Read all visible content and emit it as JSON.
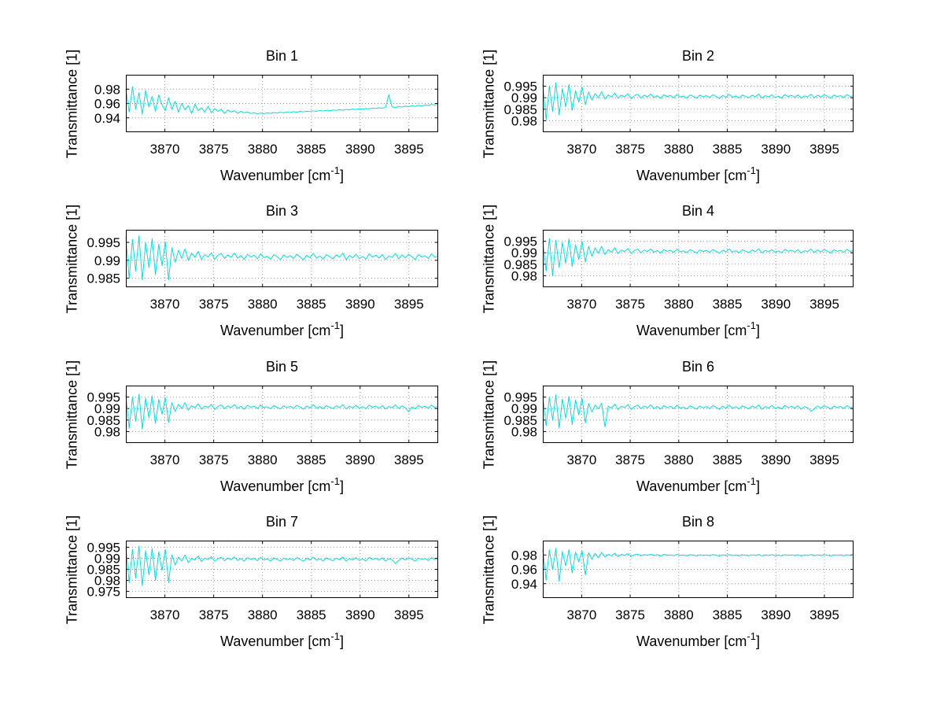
{
  "figure": {
    "background": "#ffffff"
  },
  "labels": {
    "ylabel": "Transmittance [1]",
    "xlabel_main": "Wavenumber [cm",
    "xlabel_sup": "-1",
    "xlabel_suffix": "]"
  },
  "chart_data": {
    "type": "line",
    "series_color": "#00E0E0",
    "grid": true,
    "x_lim": [
      3866,
      3898
    ],
    "x_ticks": [
      3870,
      3875,
      3880,
      3885,
      3890,
      3895
    ],
    "xlabel": "Wavenumber [cm-1]",
    "ylabel": "Transmittance [1]",
    "bins": [
      {
        "title": "Bin 1",
        "y_lim": [
          0.92,
          1.0
        ],
        "y_ticks": [
          0.94,
          0.96,
          0.98
        ],
        "y_tick_labels": [
          "0.94",
          "0.96",
          "0.98"
        ],
        "y": [
          0.98,
          0.948,
          0.983,
          0.952,
          0.975,
          0.945,
          0.978,
          0.955,
          0.97,
          0.949,
          0.972,
          0.958,
          0.95,
          0.968,
          0.952,
          0.963,
          0.948,
          0.96,
          0.951,
          0.957,
          0.946,
          0.959,
          0.95,
          0.954,
          0.948,
          0.956,
          0.947,
          0.953,
          0.949,
          0.952,
          0.946,
          0.951,
          0.948,
          0.95,
          0.9462,
          0.949,
          0.947,
          0.9482,
          0.946,
          0.9472,
          0.9455,
          0.9468,
          0.9458,
          0.947,
          0.9462,
          0.9474,
          0.9466,
          0.9478,
          0.947,
          0.9482,
          0.9474,
          0.9486,
          0.9478,
          0.949,
          0.9483,
          0.9494,
          0.9487,
          0.9498,
          0.9491,
          0.9502,
          0.9495,
          0.9506,
          0.95,
          0.951,
          0.9504,
          0.9514,
          0.9508,
          0.9518,
          0.9512,
          0.9522,
          0.9516,
          0.9526,
          0.9521,
          0.953,
          0.9526,
          0.9535,
          0.953,
          0.954,
          0.9535,
          0.9545,
          0.972,
          0.955,
          0.9545,
          0.9556,
          0.955,
          0.9562,
          0.9556,
          0.9568,
          0.956,
          0.9574,
          0.9566,
          0.958,
          0.9572,
          0.9586,
          0.9578,
          0.9592
        ]
      },
      {
        "title": "Bin 2",
        "y_lim": [
          0.975,
          1.0
        ],
        "y_ticks": [
          0.98,
          0.985,
          0.99,
          0.995
        ],
        "y_tick_labels": [
          "0.98",
          "0.985",
          "0.99",
          "0.995"
        ],
        "y": [
          0.996,
          0.9805,
          0.995,
          0.984,
          0.9965,
          0.9825,
          0.994,
          0.986,
          0.9958,
          0.9845,
          0.993,
          0.988,
          0.9948,
          0.987,
          0.9925,
          0.989,
          0.9918,
          0.99,
          0.9926,
          0.9895,
          0.9912,
          0.9903,
          0.992,
          0.9898,
          0.9911,
          0.9904,
          0.9917,
          0.9896,
          0.9909,
          0.9915,
          0.9899,
          0.9911,
          0.9904,
          0.9916,
          0.9901,
          0.9909,
          0.9897,
          0.9913,
          0.9905,
          0.991,
          0.99,
          0.9914,
          0.9903,
          0.9907,
          0.9899,
          0.9912,
          0.9906,
          0.9898,
          0.9911,
          0.9904,
          0.9909,
          0.9901,
          0.9913,
          0.9905,
          0.9897,
          0.991,
          0.9903,
          0.9915,
          0.9902,
          0.9908,
          0.9899,
          0.9912,
          0.9906,
          0.99,
          0.9911,
          0.9904,
          0.9916,
          0.9898,
          0.9909,
          0.9903,
          0.9913,
          0.9901,
          0.9907,
          0.9899,
          0.9914,
          0.9905,
          0.991,
          0.9902,
          0.9912,
          0.9898,
          0.9908,
          0.9904,
          0.9915,
          0.99,
          0.9911,
          0.9903,
          0.9913,
          0.9906,
          0.9898,
          0.9912,
          0.9905,
          0.9909,
          0.9901,
          0.9914,
          0.9904,
          0.991
        ]
      },
      {
        "title": "Bin 3",
        "y_lim": [
          0.9825,
          0.9985
        ],
        "y_ticks": [
          0.985,
          0.99,
          0.995
        ],
        "y_tick_labels": [
          "0.985",
          "0.99",
          "0.995"
        ],
        "y": [
          0.9965,
          0.985,
          0.9958,
          0.987,
          0.9968,
          0.9845,
          0.995,
          0.988,
          0.996,
          0.986,
          0.9945,
          0.9885,
          0.9952,
          0.9845,
          0.9935,
          0.9895,
          0.9928,
          0.9905,
          0.9932,
          0.99,
          0.992,
          0.9908,
          0.9925,
          0.9902,
          0.9916,
          0.9909,
          0.9921,
          0.9903,
          0.9914,
          0.9919,
          0.9905,
          0.9915,
          0.9908,
          0.992,
          0.9906,
          0.9913,
          0.9902,
          0.9917,
          0.9909,
          0.9914,
          0.9904,
          0.9918,
          0.9907,
          0.9911,
          0.9903,
          0.9916,
          0.991,
          0.9902,
          0.9915,
          0.9908,
          0.9913,
          0.9905,
          0.9917,
          0.9909,
          0.9901,
          0.9914,
          0.9907,
          0.9919,
          0.9906,
          0.9912,
          0.9903,
          0.9916,
          0.991,
          0.9904,
          0.9915,
          0.9908,
          0.992,
          0.9902,
          0.9913,
          0.9907,
          0.9917,
          0.9905,
          0.9911,
          0.9903,
          0.9918,
          0.9909,
          0.9914,
          0.9906,
          0.9916,
          0.9902,
          0.9912,
          0.9908,
          0.9919,
          0.9904,
          0.9915,
          0.9907,
          0.9917,
          0.991,
          0.9902,
          0.9916,
          0.9909,
          0.9913,
          0.9905,
          0.9918,
          0.9908,
          0.9914
        ]
      },
      {
        "title": "Bin 4",
        "y_lim": [
          0.975,
          1.0
        ],
        "y_ticks": [
          0.98,
          0.985,
          0.99,
          0.995
        ],
        "y_tick_labels": [
          "0.98",
          "0.985",
          "0.99",
          "0.995"
        ],
        "y": [
          0.995,
          0.982,
          0.9962,
          0.98,
          0.9955,
          0.9835,
          0.9945,
          0.9855,
          0.996,
          0.984,
          0.9935,
          0.987,
          0.995,
          0.986,
          0.9928,
          0.9885,
          0.992,
          0.9898,
          0.9928,
          0.9892,
          0.9914,
          0.9902,
          0.9922,
          0.9896,
          0.9912,
          0.9905,
          0.9918,
          0.9897,
          0.991,
          0.9916,
          0.99,
          0.9912,
          0.9905,
          0.9917,
          0.9902,
          0.991,
          0.9898,
          0.9914,
          0.9906,
          0.9911,
          0.9901,
          0.9915,
          0.9904,
          0.9908,
          0.99,
          0.9913,
          0.9907,
          0.9899,
          0.9912,
          0.9905,
          0.991,
          0.9902,
          0.9914,
          0.9906,
          0.9898,
          0.9911,
          0.9904,
          0.9916,
          0.9903,
          0.9909,
          0.99,
          0.9913,
          0.9907,
          0.9901,
          0.9912,
          0.9905,
          0.9917,
          0.9899,
          0.991,
          0.9904,
          0.9914,
          0.9902,
          0.9908,
          0.99,
          0.9915,
          0.9906,
          0.9911,
          0.9903,
          0.9913,
          0.9899,
          0.9909,
          0.9905,
          0.9916,
          0.9901,
          0.9912,
          0.9904,
          0.9914,
          0.9907,
          0.9899,
          0.9913,
          0.9906,
          0.991,
          0.9902,
          0.9915,
          0.9905,
          0.9911
        ]
      },
      {
        "title": "Bin 5",
        "y_lim": [
          0.975,
          1.0
        ],
        "y_ticks": [
          0.98,
          0.985,
          0.99,
          0.995
        ],
        "y_tick_labels": [
          "0.98",
          "0.985",
          "0.99",
          "0.995"
        ],
        "y": [
          0.9958,
          0.9815,
          0.995,
          0.9845,
          0.9962,
          0.981,
          0.9945,
          0.986,
          0.9955,
          0.9835,
          0.994,
          0.9875,
          0.9948,
          0.984,
          0.9925,
          0.9888,
          0.9918,
          0.99,
          0.9926,
          0.9893,
          0.9912,
          0.9903,
          0.9921,
          0.9897,
          0.9911,
          0.9905,
          0.9918,
          0.9896,
          0.9909,
          0.9916,
          0.99,
          0.9912,
          0.9904,
          0.9917,
          0.9901,
          0.991,
          0.9897,
          0.9914,
          0.9905,
          0.9911,
          0.99,
          0.9915,
          0.9903,
          0.9908,
          0.9899,
          0.9913,
          0.9906,
          0.9898,
          0.9912,
          0.9904,
          0.991,
          0.9901,
          0.9914,
          0.9906,
          0.9897,
          0.9911,
          0.9903,
          0.9916,
          0.9902,
          0.9909,
          0.9899,
          0.9913,
          0.9906,
          0.99,
          0.9912,
          0.9904,
          0.9917,
          0.9898,
          0.991,
          0.9903,
          0.9914,
          0.9901,
          0.9908,
          0.9899,
          0.9915,
          0.9905,
          0.9911,
          0.9902,
          0.9913,
          0.9898,
          0.9909,
          0.9904,
          0.9916,
          0.99,
          0.9912,
          0.9903,
          0.9887,
          0.9907,
          0.9899,
          0.9913,
          0.9905,
          0.991,
          0.9901,
          0.9915,
          0.9904,
          0.9911
        ]
      },
      {
        "title": "Bin 6",
        "y_lim": [
          0.975,
          1.0
        ],
        "y_ticks": [
          0.98,
          0.985,
          0.99,
          0.995
        ],
        "y_tick_labels": [
          "0.98",
          "0.985",
          "0.99",
          "0.995"
        ],
        "y": [
          0.9955,
          0.9825,
          0.9948,
          0.985,
          0.996,
          0.9815,
          0.9942,
          0.9858,
          0.9952,
          0.983,
          0.9938,
          0.9872,
          0.9946,
          0.9838,
          0.9922,
          0.9885,
          0.9915,
          0.9898,
          0.9924,
          0.982,
          0.991,
          0.9902,
          0.9919,
          0.9895,
          0.991,
          0.9904,
          0.9917,
          0.9896,
          0.9908,
          0.9915,
          0.9899,
          0.9911,
          0.9903,
          0.9916,
          0.99,
          0.9909,
          0.9897,
          0.9913,
          0.9904,
          0.991,
          0.9899,
          0.9914,
          0.9902,
          0.9907,
          0.9898,
          0.9912,
          0.9905,
          0.9897,
          0.9911,
          0.9903,
          0.9909,
          0.99,
          0.9913,
          0.9905,
          0.9896,
          0.991,
          0.9902,
          0.9915,
          0.9901,
          0.9908,
          0.9898,
          0.9912,
          0.9905,
          0.9899,
          0.9911,
          0.9903,
          0.9916,
          0.9897,
          0.9909,
          0.9902,
          0.9913,
          0.99,
          0.9907,
          0.9898,
          0.9914,
          0.9904,
          0.991,
          0.9901,
          0.9912,
          0.9897,
          0.9908,
          0.9903,
          0.9888,
          0.9899,
          0.9911,
          0.9902,
          0.9912,
          0.9906,
          0.9897,
          0.9911,
          0.9904,
          0.9909,
          0.99,
          0.9913,
          0.9903,
          0.9909
        ]
      },
      {
        "title": "Bin 7",
        "y_lim": [
          0.972,
          0.998
        ],
        "y_ticks": [
          0.975,
          0.98,
          0.985,
          0.99,
          0.995
        ],
        "y_tick_labels": [
          "0.975",
          "0.98",
          "0.985",
          "0.99",
          "0.995"
        ],
        "y": [
          0.995,
          0.979,
          0.994,
          0.981,
          0.9955,
          0.9775,
          0.9935,
          0.9825,
          0.9945,
          0.98,
          0.993,
          0.9845,
          0.994,
          0.979,
          0.9915,
          0.987,
          0.9905,
          0.9888,
          0.9915,
          0.988,
          0.99,
          0.9892,
          0.991,
          0.9885,
          0.9901,
          0.9894,
          0.9907,
          0.9886,
          0.9898,
          0.9905,
          0.9889,
          0.9901,
          0.9893,
          0.9906,
          0.989,
          0.9899,
          0.9887,
          0.9903,
          0.9894,
          0.99,
          0.9889,
          0.9904,
          0.9892,
          0.9897,
          0.9888,
          0.9902,
          0.9895,
          0.9887,
          0.9901,
          0.9893,
          0.9899,
          0.989,
          0.9903,
          0.9895,
          0.9886,
          0.99,
          0.9892,
          0.9905,
          0.9891,
          0.9898,
          0.9888,
          0.9902,
          0.9895,
          0.9889,
          0.9901,
          0.9893,
          0.9906,
          0.9887,
          0.9899,
          0.9892,
          0.9903,
          0.989,
          0.9897,
          0.9888,
          0.9904,
          0.9894,
          0.99,
          0.9891,
          0.9902,
          0.9887,
          0.9898,
          0.9893,
          0.9876,
          0.989,
          0.9901,
          0.9892,
          0.9902,
          0.9896,
          0.9887,
          0.9901,
          0.9894,
          0.9899,
          0.989,
          0.9903,
          0.9893,
          0.9899
        ]
      },
      {
        "title": "Bin 8",
        "y_lim": [
          0.92,
          1.0
        ],
        "y_ticks": [
          0.94,
          0.96,
          0.98
        ],
        "y_tick_labels": [
          "0.94",
          "0.96",
          "0.98"
        ],
        "y": [
          0.988,
          0.945,
          0.987,
          0.96,
          0.989,
          0.943,
          0.985,
          0.965,
          0.9875,
          0.955,
          0.984,
          0.97,
          0.986,
          0.952,
          0.983,
          0.974,
          0.982,
          0.976,
          0.9835,
          0.977,
          0.981,
          0.9785,
          0.9825,
          0.9775,
          0.9808,
          0.9792,
          0.9818,
          0.978,
          0.9802,
          0.9812,
          0.9788,
          0.9805,
          0.9795,
          0.9812,
          0.979,
          0.9803,
          0.9786,
          0.9808,
          0.9796,
          0.9802,
          0.979,
          0.9807,
          0.9794,
          0.9799,
          0.9788,
          0.9804,
          0.9797,
          0.9787,
          0.9803,
          0.9793,
          0.98,
          0.979,
          0.9805,
          0.9796,
          0.9786,
          0.9802,
          0.9792,
          0.9806,
          0.9791,
          0.9799,
          0.9788,
          0.9803,
          0.9796,
          0.9789,
          0.9802,
          0.9793,
          0.9807,
          0.9787,
          0.98,
          0.9792,
          0.9804,
          0.979,
          0.9798,
          0.9787,
          0.9805,
          0.9794,
          0.9801,
          0.9791,
          0.9803,
          0.9786,
          0.9798,
          0.9793,
          0.9806,
          0.9789,
          0.9802,
          0.9792,
          0.9804,
          0.9796,
          0.9786,
          0.9801,
          0.9793,
          0.9799,
          0.9789,
          0.9803,
          0.9792,
          0.98
        ]
      }
    ]
  }
}
